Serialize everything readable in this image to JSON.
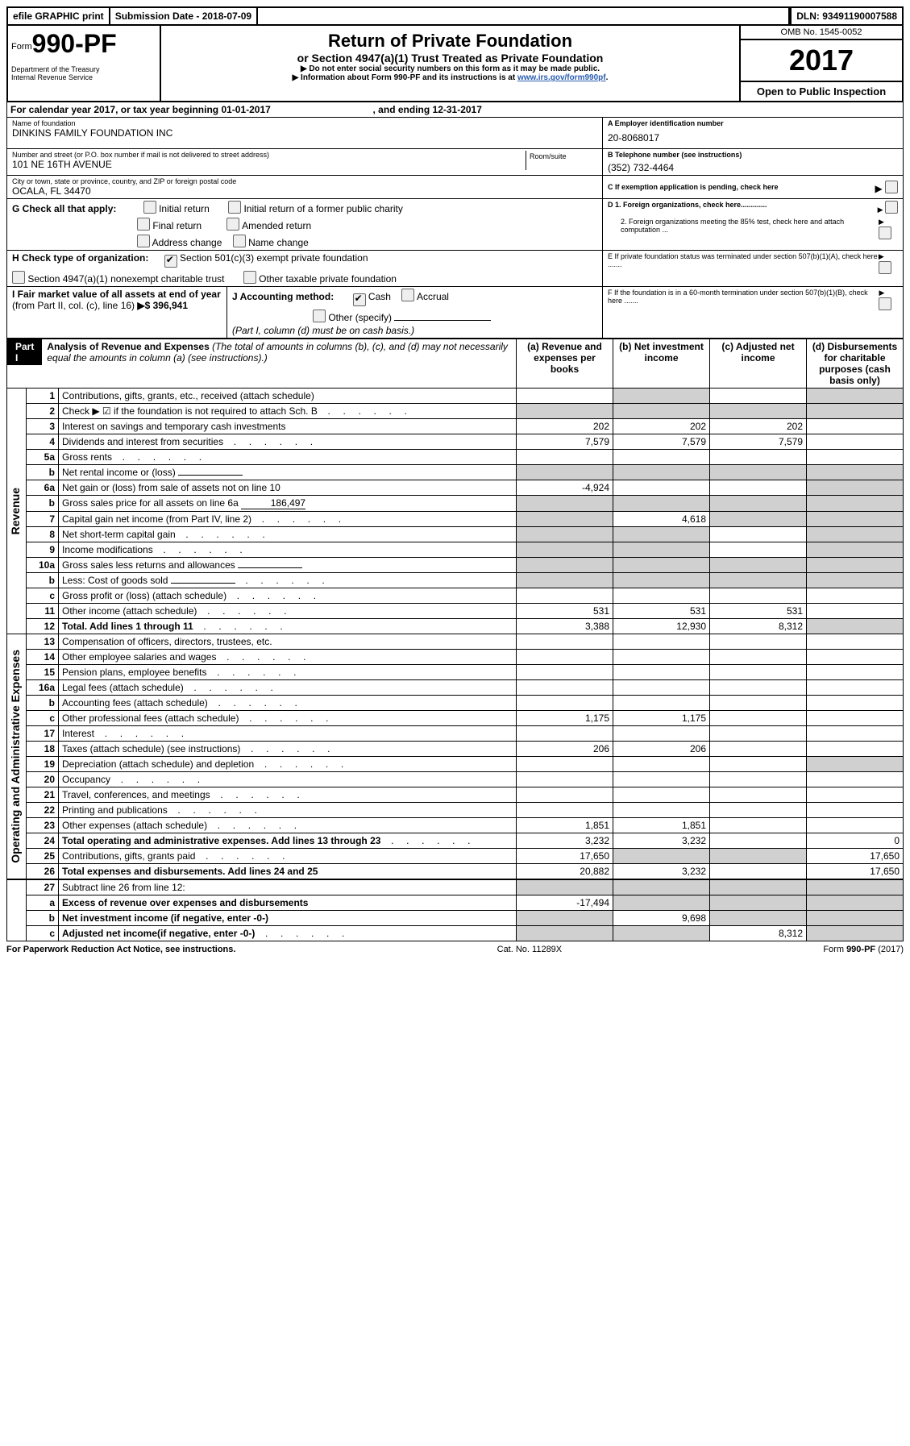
{
  "efile": {
    "print": "efile GRAPHIC print",
    "submission_label": "Submission Date - 2018-07-09",
    "dln_label": "DLN: 93491190007588"
  },
  "header": {
    "form_prefix": "Form",
    "form_number": "990-PF",
    "dept": "Department of the Treasury",
    "irs": "Internal Revenue Service",
    "title": "Return of Private Foundation",
    "subtitle": "or Section 4947(a)(1) Trust Treated as Private Foundation",
    "note1": "▶ Do not enter social security numbers on this form as it may be made public.",
    "note2_prefix": "▶ Information about Form 990-PF and its instructions is at ",
    "note2_link": "www.irs.gov/form990pf",
    "omb": "OMB No. 1545-0052",
    "year": "2017",
    "open": "Open to Public Inspection"
  },
  "calyear": {
    "text_a": "For calendar year 2017, or tax year beginning 01-01-2017",
    "text_b": ", and ending 12-31-2017"
  },
  "id": {
    "name_label": "Name of foundation",
    "name": "DINKINS FAMILY FOUNDATION INC",
    "addr_label": "Number and street (or P.O. box number if mail is not delivered to street address)",
    "room_label": "Room/suite",
    "addr": "101 NE 16TH AVENUE",
    "city_label": "City or town, state or province, country, and ZIP or foreign postal code",
    "city": "OCALA, FL  34470",
    "ein_label": "A Employer identification number",
    "ein": "20-8068017",
    "tel_label": "B Telephone number (see instructions)",
    "tel": "(352) 732-4464",
    "c_label": "C If exemption application is pending, check here",
    "d1": "D 1. Foreign organizations, check here.............",
    "d2": "2. Foreign organizations meeting the 85% test, check here and attach computation ...",
    "e_label": "E  If private foundation status was terminated under section 507(b)(1)(A), check here .......",
    "f_label": "F  If the foundation is in a 60-month termination under section 507(b)(1)(B), check here .......",
    "g_label": "G Check all that apply:",
    "g_opts": [
      "Initial return",
      "Initial return of a former public charity",
      "Final return",
      "Amended return",
      "Address change",
      "Name change"
    ],
    "h_label": "H Check type of organization:",
    "h_opts": [
      "Section 501(c)(3) exempt private foundation",
      "Section 4947(a)(1) nonexempt charitable trust",
      "Other taxable private foundation"
    ],
    "i_label": "I Fair market value of all assets at end of year ",
    "i_sub": "(from Part II, col. (c), line 16)",
    "i_value": "▶$  396,941",
    "j_label": "J Accounting method:",
    "j_cash": "Cash",
    "j_accrual": "Accrual",
    "j_other": "Other (specify)",
    "j_note": "(Part I, column (d) must be on cash basis.)"
  },
  "part1": {
    "label": "Part I",
    "title": "Analysis of Revenue and Expenses",
    "title_note": " (The total of amounts in columns (b), (c), and (d) may not necessarily equal the amounts in column (a) (see instructions).)",
    "col_a": "(a)   Revenue and expenses per books",
    "col_b": "(b)  Net investment income",
    "col_c": "(c)  Adjusted net income",
    "col_d": "(d)  Disbursements for charitable purposes (cash basis only)",
    "rev_label": "Revenue",
    "exp_label": "Operating and Administrative Expenses"
  },
  "lines": [
    {
      "no": "1",
      "desc": "Contributions, gifts, grants, etc., received (attach schedule)",
      "a": "",
      "b": "",
      "c": "",
      "d": ""
    },
    {
      "no": "2",
      "desc": "Check ▶ ☑ if the foundation is not required to attach Sch. B",
      "a": "",
      "b": "",
      "c": "",
      "d": "",
      "dots": true,
      "bold_not": true
    },
    {
      "no": "3",
      "desc": "Interest on savings and temporary cash investments",
      "a": "202",
      "b": "202",
      "c": "202",
      "d": ""
    },
    {
      "no": "4",
      "desc": "Dividends and interest from securities",
      "a": "7,579",
      "b": "7,579",
      "c": "7,579",
      "d": "",
      "dots": true
    },
    {
      "no": "5a",
      "desc": "Gross rents",
      "a": "",
      "b": "",
      "c": "",
      "d": "",
      "dots": true
    },
    {
      "no": "b",
      "desc": "Net rental income or (loss)",
      "a": "",
      "b": "",
      "c": "",
      "d": "",
      "inline": true
    },
    {
      "no": "6a",
      "desc": "Net gain or (loss) from sale of assets not on line 10",
      "a": "-4,924",
      "b": "",
      "c": "",
      "d": ""
    },
    {
      "no": "b",
      "desc": "Gross sales price for all assets on line 6a",
      "a": "",
      "b": "",
      "c": "",
      "d": "",
      "inline_val": "186,497"
    },
    {
      "no": "7",
      "desc": "Capital gain net income (from Part IV, line 2)",
      "a": "",
      "b": "4,618",
      "c": "",
      "d": "",
      "dots": true
    },
    {
      "no": "8",
      "desc": "Net short-term capital gain",
      "a": "",
      "b": "",
      "c": "",
      "d": "",
      "dots": true
    },
    {
      "no": "9",
      "desc": "Income modifications",
      "a": "",
      "b": "",
      "c": "",
      "d": "",
      "dots": true
    },
    {
      "no": "10a",
      "desc": "Gross sales less returns and allowances",
      "a": "",
      "b": "",
      "c": "",
      "d": "",
      "inline": true
    },
    {
      "no": "b",
      "desc": "Less: Cost of goods sold",
      "a": "",
      "b": "",
      "c": "",
      "d": "",
      "inline": true,
      "dots": true
    },
    {
      "no": "c",
      "desc": "Gross profit or (loss) (attach schedule)",
      "a": "",
      "b": "",
      "c": "",
      "d": "",
      "dots": true
    },
    {
      "no": "11",
      "desc": "Other income (attach schedule)",
      "a": "531",
      "b": "531",
      "c": "531",
      "d": "",
      "dots": true
    },
    {
      "no": "12",
      "desc": "Total. Add lines 1 through 11",
      "a": "3,388",
      "b": "12,930",
      "c": "8,312",
      "d": "",
      "bold": true,
      "dots": true
    }
  ],
  "exp_lines": [
    {
      "no": "13",
      "desc": "Compensation of officers, directors, trustees, etc.",
      "a": "",
      "b": "",
      "c": "",
      "d": ""
    },
    {
      "no": "14",
      "desc": "Other employee salaries and wages",
      "a": "",
      "b": "",
      "c": "",
      "d": "",
      "dots": true
    },
    {
      "no": "15",
      "desc": "Pension plans, employee benefits",
      "a": "",
      "b": "",
      "c": "",
      "d": "",
      "dots": true
    },
    {
      "no": "16a",
      "desc": "Legal fees (attach schedule)",
      "a": "",
      "b": "",
      "c": "",
      "d": "",
      "dots": true
    },
    {
      "no": "b",
      "desc": "Accounting fees (attach schedule)",
      "a": "",
      "b": "",
      "c": "",
      "d": "",
      "dots": true
    },
    {
      "no": "c",
      "desc": "Other professional fees (attach schedule)",
      "a": "1,175",
      "b": "1,175",
      "c": "",
      "d": "",
      "dots": true
    },
    {
      "no": "17",
      "desc": "Interest",
      "a": "",
      "b": "",
      "c": "",
      "d": "",
      "dots": true
    },
    {
      "no": "18",
      "desc": "Taxes (attach schedule) (see instructions)",
      "a": "206",
      "b": "206",
      "c": "",
      "d": "",
      "dots": true
    },
    {
      "no": "19",
      "desc": "Depreciation (attach schedule) and depletion",
      "a": "",
      "b": "",
      "c": "",
      "d": "",
      "dots": true,
      "shade_d": true
    },
    {
      "no": "20",
      "desc": "Occupancy",
      "a": "",
      "b": "",
      "c": "",
      "d": "",
      "dots": true
    },
    {
      "no": "21",
      "desc": "Travel, conferences, and meetings",
      "a": "",
      "b": "",
      "c": "",
      "d": "",
      "dots": true
    },
    {
      "no": "22",
      "desc": "Printing and publications",
      "a": "",
      "b": "",
      "c": "",
      "d": "",
      "dots": true
    },
    {
      "no": "23",
      "desc": "Other expenses (attach schedule)",
      "a": "1,851",
      "b": "1,851",
      "c": "",
      "d": "",
      "dots": true
    },
    {
      "no": "24",
      "desc": "Total operating and administrative expenses. Add lines 13 through 23",
      "a": "3,232",
      "b": "3,232",
      "c": "",
      "d": "0",
      "bold": true,
      "dots": true
    },
    {
      "no": "25",
      "desc": "Contributions, gifts, grants paid",
      "a": "17,650",
      "b": "",
      "c": "",
      "d": "17,650",
      "dots": true,
      "shade_b": true,
      "shade_c": true
    },
    {
      "no": "26",
      "desc": "Total expenses and disbursements. Add lines 24 and 25",
      "a": "20,882",
      "b": "3,232",
      "c": "",
      "d": "17,650",
      "bold": true
    }
  ],
  "net_lines": [
    {
      "no": "27",
      "desc": "Subtract line 26 from line 12:",
      "a": "",
      "b": "",
      "c": "",
      "d": ""
    },
    {
      "no": "a",
      "desc": "Excess of revenue over expenses and disbursements",
      "a": "-17,494",
      "b": "",
      "c": "",
      "d": "",
      "bold": true,
      "shade_b": true,
      "shade_c": true,
      "shade_d": true
    },
    {
      "no": "b",
      "desc": "Net investment income (if negative, enter -0-)",
      "a": "",
      "b": "9,698",
      "c": "",
      "d": "",
      "bold": true,
      "shade_a": true,
      "shade_c": true,
      "shade_d": true
    },
    {
      "no": "c",
      "desc": "Adjusted net income(if negative, enter -0-)",
      "a": "",
      "b": "",
      "c": "8,312",
      "d": "",
      "bold": true,
      "dots": true,
      "shade_a": true,
      "shade_b": true,
      "shade_d": true
    }
  ],
  "footer": {
    "left": "For Paperwork Reduction Act Notice, see instructions.",
    "mid": "Cat. No. 11289X",
    "right": "Form 990-PF (2017)"
  }
}
